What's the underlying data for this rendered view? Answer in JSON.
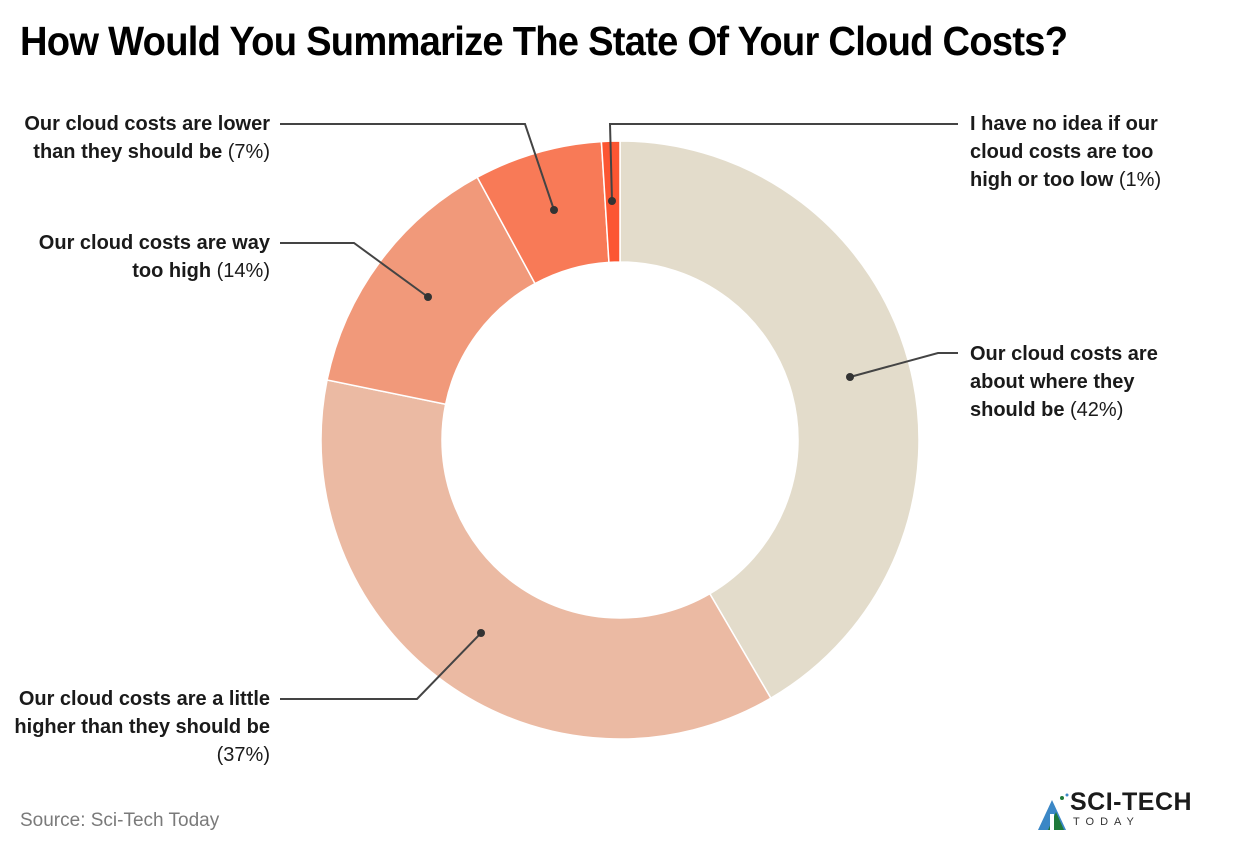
{
  "title": "How Would You Summarize The State Of Your Cloud Costs?",
  "source": "Source: Sci-Tech Today",
  "logo": {
    "main": "SCI-TECH",
    "sub": "TODAY"
  },
  "colors": {
    "about_where": "#E3DCCB",
    "little_higher": "#EBBAA3",
    "way_too_high": "#F1997A",
    "lower": "#F87A57",
    "no_idea": "#FC5632",
    "leader": "#444444"
  },
  "labels": [
    {
      "key": "lower",
      "bold": "Our cloud costs are lower than they should be",
      "pct": "(7%)"
    },
    {
      "key": "way_too_high",
      "bold": "Our cloud costs are way too high",
      "pct": "(14%)"
    },
    {
      "key": "little_higher",
      "bold": "Our cloud costs are a little higher than they should be",
      "pct": "(37%)"
    },
    {
      "key": "no_idea",
      "bold": "I have no idea if our cloud costs are too high or too low",
      "pct": "(1%)"
    },
    {
      "key": "about_where",
      "bold": "Our cloud costs are about where they should be",
      "pct": "(42%)"
    }
  ],
  "chart_data": {
    "type": "pie",
    "subtype": "donut",
    "title": "How Would You Summarize The State Of Your Cloud Costs?",
    "categories": [
      "Our cloud costs are about where they should be",
      "Our cloud costs are a little higher than they should be",
      "Our cloud costs are way too high",
      "Our cloud costs are lower than they should be",
      "I have no idea if our cloud costs are too high or too low"
    ],
    "values": [
      42,
      37,
      14,
      7,
      1
    ],
    "unit": "%",
    "colors": [
      "#E3DCCB",
      "#EBBAA3",
      "#F1997A",
      "#F87A57",
      "#FC5632"
    ],
    "start_angle": "12 o'clock, clockwise",
    "legend": "none (leader-line labels)",
    "source": "Sci-Tech Today"
  }
}
